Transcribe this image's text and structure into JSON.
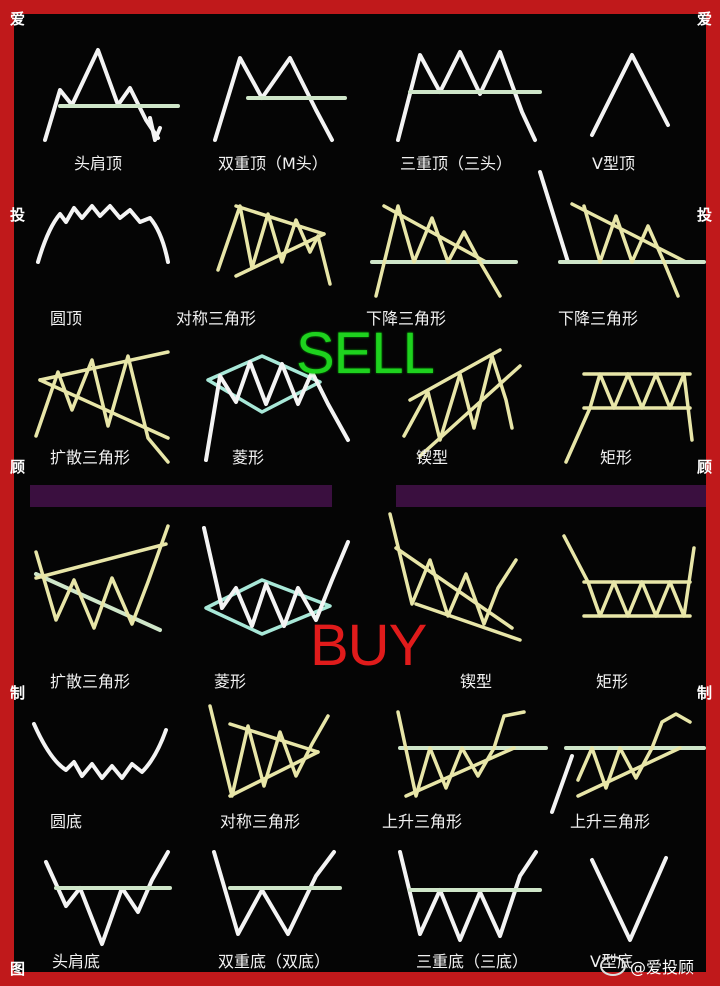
{
  "side_text": [
    "爱",
    "投",
    "顾",
    "制",
    "图"
  ],
  "sell_label": "SELL",
  "buy_label": "BUY",
  "watermark": "@爱投顾",
  "colors": {
    "frame": "#c0191b",
    "sell": "#1ed21e",
    "buy": "#e01b1b",
    "divider": "#3a0f3f"
  },
  "rows": [
    [
      "头肩顶",
      "双重顶（M头）",
      "三重顶（三头）",
      "V型顶"
    ],
    [
      "圆顶",
      "对称三角形",
      "下降三角形",
      "下降三角形"
    ],
    [
      "扩散三角形",
      "菱形",
      "锲型",
      "矩形"
    ],
    [
      "扩散三角形",
      "菱形",
      "锲型",
      "矩形"
    ],
    [
      "圆底",
      "对称三角形",
      "上升三角形",
      "上升三角形"
    ],
    [
      "头肩底",
      "双重底（双底）",
      "三重底（三底）",
      "V型底"
    ]
  ]
}
